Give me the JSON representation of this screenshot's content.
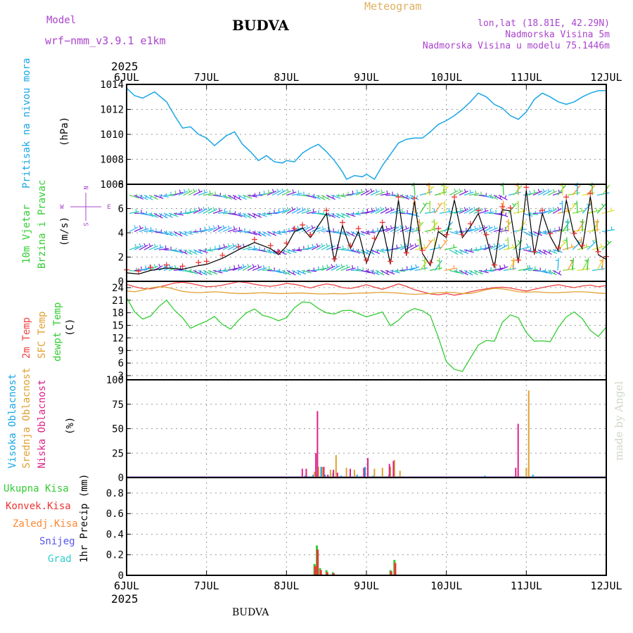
{
  "header": {
    "model_label": "Model",
    "model_name": "wrf−nmm_v3.9.1 e1km",
    "station": "BUDVA",
    "product": "Meteogram",
    "coords": "lon,lat (18.81E, 42.29N)",
    "elevation": "Nadmorska Visina 5m",
    "model_elevation": "Nadmorska Visina u modelu 75.1446m",
    "year_top": "2025",
    "year_bottom": "2025",
    "footer_station": "BUDVA",
    "watermark": "made by Angel"
  },
  "colors": {
    "pressure": "#1aa7e6",
    "temp2m": "#ee4444",
    "sfc_temp": "#e0a030",
    "dewpoint": "#33cc33",
    "wind_speed": "#000000",
    "gust_marker": "#ee3333",
    "high_cloud": "#1aa7e6",
    "mid_cloud": "#e0a030",
    "low_cloud": "#dd2288",
    "total_precip": "#33cc33",
    "convective_precip": "#ee3333",
    "freezing_precip": "#ff8833",
    "snow": "#5555ee",
    "hail": "#33cccc",
    "label_purple": "#aa44cc",
    "label_orange": "#e0b060"
  },
  "x_axis": {
    "ticks": [
      "6JUL",
      "7JUL",
      "8JUL",
      "9JUL",
      "10JUL",
      "11JUL",
      "12JUL"
    ],
    "start": 0,
    "end": 6
  },
  "panel_labels": {
    "pressure": {
      "name": "Pritisak na nivou mora",
      "unit": "(hPa)"
    },
    "wind": {
      "name1": "10m Vjetar",
      "name2": "Brzina i Pravac",
      "unit": "(m/s)",
      "compass_n": "N",
      "compass_w": "W",
      "compass_e": "E",
      "compass_s": "S"
    },
    "temp": {
      "name1": "2m Temp",
      "name2": "SFC Temp",
      "name3": "dewpt Temp",
      "unit": "(C)"
    },
    "cloud": {
      "name1": "Visoka Oblacnost",
      "name2": "Srednja Oblacnost",
      "name3": "Niska Oblacnost",
      "unit": "(%)"
    },
    "precip": {
      "legend": [
        "Ukupna Kisa",
        "Konvek.Kisa",
        "Zaledj.Kisa",
        "Snijeg",
        "Grad"
      ],
      "unit": "1hr Precip (mm)"
    }
  },
  "chart_data": [
    {
      "type": "line",
      "name": "pressure",
      "ylim": [
        1006,
        1014
      ],
      "yticks": [
        "1006",
        "1008",
        "1010",
        "1012",
        "1014"
      ],
      "x": [
        0,
        0.1,
        0.2,
        0.35,
        0.5,
        0.6,
        0.7,
        0.8,
        0.9,
        1.0,
        1.1,
        1.25,
        1.35,
        1.45,
        1.55,
        1.65,
        1.75,
        1.85,
        1.95,
        2.0,
        2.1,
        2.2,
        2.3,
        2.4,
        2.5,
        2.6,
        2.7,
        2.75,
        2.85,
        2.95,
        3.0,
        3.1,
        3.2,
        3.3,
        3.4,
        3.5,
        3.6,
        3.7,
        3.8,
        3.9,
        4.0,
        4.1,
        4.2,
        4.3,
        4.4,
        4.5,
        4.6,
        4.7,
        4.8,
        4.9,
        5.0,
        5.1,
        5.2,
        5.3,
        5.4,
        5.5,
        5.6,
        5.7,
        5.8,
        5.9,
        6.0
      ],
      "values": [
        1013.7,
        1013.1,
        1012.9,
        1013.4,
        1012.6,
        1011.5,
        1010.5,
        1010.6,
        1010.0,
        1009.7,
        1009.1,
        1009.9,
        1010.2,
        1009.2,
        1008.6,
        1007.9,
        1008.3,
        1007.8,
        1007.7,
        1007.9,
        1007.8,
        1008.5,
        1008.9,
        1009.2,
        1008.6,
        1007.9,
        1007.0,
        1006.4,
        1006.7,
        1006.6,
        1006.8,
        1006.4,
        1007.5,
        1008.4,
        1009.3,
        1009.6,
        1009.7,
        1009.7,
        1010.2,
        1010.8,
        1011.1,
        1011.5,
        1012.0,
        1012.6,
        1013.3,
        1013.0,
        1012.4,
        1012.1,
        1011.5,
        1011.2,
        1011.8,
        1012.8,
        1013.3,
        1013.0,
        1012.6,
        1012.4,
        1012.6,
        1013.0,
        1013.3,
        1013.5,
        1013.5
      ]
    },
    {
      "type": "line",
      "name": "wind_speed",
      "ylim": [
        0,
        8
      ],
      "yticks": [
        "0",
        "2",
        "4",
        "6",
        "8"
      ],
      "x": [
        0,
        0.15,
        0.3,
        0.5,
        0.7,
        0.9,
        1.0,
        1.2,
        1.4,
        1.6,
        1.8,
        1.9,
        2.0,
        2.1,
        2.2,
        2.3,
        2.5,
        2.6,
        2.7,
        2.8,
        2.9,
        3.0,
        3.1,
        3.2,
        3.3,
        3.4,
        3.5,
        3.6,
        3.7,
        3.8,
        3.9,
        4.0,
        4.1,
        4.2,
        4.3,
        4.4,
        4.5,
        4.6,
        4.7,
        4.8,
        4.9,
        5.0,
        5.1,
        5.2,
        5.3,
        5.4,
        5.5,
        5.6,
        5.7,
        5.8,
        5.9,
        6.0
      ],
      "values": [
        0.7,
        0.6,
        0.9,
        1.1,
        1.0,
        1.3,
        1.4,
        1.9,
        2.6,
        3.2,
        2.7,
        2.2,
        2.9,
        4.1,
        4.4,
        3.6,
        5.6,
        1.6,
        4.6,
        2.7,
        4.1,
        1.5,
        3.3,
        4.6,
        1.4,
        6.7,
        2.1,
        6.6,
        2.3,
        1.3,
        4.1,
        3.6,
        6.7,
        3.6,
        4.5,
        5.6,
        3.6,
        1.1,
        5.9,
        5.8,
        1.5,
        7.5,
        2.2,
        5.6,
        3.7,
        2.5,
        6.7,
        3.7,
        2.7,
        7.0,
        2.2,
        1.8
      ]
    },
    {
      "type": "line",
      "name": "temperature",
      "ylim": [
        2,
        25.5
      ],
      "yticks": [
        "3",
        "6",
        "9",
        "12",
        "15",
        "18",
        "21",
        "24"
      ],
      "x": [
        0,
        0.1,
        0.2,
        0.3,
        0.4,
        0.5,
        0.6,
        0.7,
        0.8,
        0.9,
        1.0,
        1.1,
        1.2,
        1.3,
        1.4,
        1.5,
        1.6,
        1.7,
        1.8,
        1.9,
        2.0,
        2.1,
        2.2,
        2.3,
        2.4,
        2.5,
        2.6,
        2.7,
        2.8,
        2.9,
        3.0,
        3.1,
        3.2,
        3.3,
        3.4,
        3.5,
        3.6,
        3.7,
        3.8,
        3.9,
        4.0,
        4.1,
        4.2,
        4.3,
        4.4,
        4.5,
        4.6,
        4.7,
        4.8,
        4.9,
        5.0,
        5.1,
        5.2,
        5.3,
        5.4,
        5.5,
        5.6,
        5.7,
        5.8,
        5.9,
        6.0
      ],
      "series": [
        {
          "name": "2m Temp",
          "values": [
            24.8,
            24.2,
            23.8,
            23.7,
            24.1,
            24.6,
            25.1,
            25.3,
            25.0,
            24.6,
            24.2,
            24.3,
            24.6,
            25.0,
            25.4,
            25.2,
            24.8,
            24.5,
            24.3,
            24.6,
            25.0,
            24.8,
            24.4,
            23.9,
            24.5,
            24.9,
            24.6,
            24.0,
            23.8,
            24.2,
            24.7,
            24.1,
            23.6,
            24.2,
            24.9,
            24.3,
            23.5,
            23.0,
            22.5,
            22.3,
            22.6,
            22.2,
            22.5,
            23.0,
            23.4,
            23.7,
            24.0,
            24.1,
            23.9,
            23.5,
            23.2,
            23.6,
            24.0,
            24.4,
            24.7,
            24.3,
            24.0,
            24.4,
            24.6,
            24.2,
            24.5
          ]
        },
        {
          "name": "SFC Temp",
          "values": [
            23.2,
            23.0,
            23.4,
            23.9,
            24.2,
            24.1,
            23.6,
            23.1,
            22.9,
            22.8,
            22.9,
            23.0,
            22.9,
            22.7,
            22.6,
            22.6,
            22.7,
            22.8,
            22.7,
            22.6,
            22.6,
            22.7,
            22.7,
            22.6,
            22.5,
            22.5,
            22.6,
            22.5,
            22.6,
            22.7,
            22.7,
            22.8,
            22.9,
            22.8,
            22.7,
            22.5,
            22.4,
            22.5,
            22.6,
            22.8,
            22.9,
            22.8,
            22.6,
            22.6,
            23.0,
            23.5,
            23.8,
            23.7,
            23.4,
            23.0,
            22.9,
            23.0,
            22.9,
            22.8,
            22.8,
            22.9,
            23.0,
            23.0,
            22.9,
            22.7,
            22.6
          ]
        },
        {
          "name": "dewpt Temp",
          "values": [
            21.6,
            18.2,
            16.5,
            17.2,
            19.4,
            21.0,
            18.6,
            16.8,
            14.3,
            15.2,
            16.0,
            17.1,
            15.2,
            14.1,
            16.2,
            18.0,
            18.9,
            17.4,
            16.9,
            16.1,
            16.8,
            19.2,
            20.6,
            20.4,
            19.0,
            18.0,
            17.7,
            18.5,
            18.6,
            17.8,
            17.0,
            17.6,
            18.2,
            14.9,
            16.2,
            18.1,
            19.0,
            18.5,
            17.3,
            12.1,
            6.3,
            4.5,
            4.0,
            7.2,
            10.3,
            11.4,
            11.2,
            15.7,
            17.5,
            16.8,
            13.3,
            11.2,
            11.3,
            11.1,
            14.5,
            17.0,
            18.2,
            16.6,
            13.8,
            12.3,
            14.6
          ]
        }
      ]
    },
    {
      "type": "bar",
      "name": "cloud_cover",
      "ylim": [
        0,
        100
      ],
      "yticks": [
        "0",
        "25",
        "50",
        "75",
        "100"
      ],
      "series": [
        {
          "name": "Visoka Oblacnost",
          "x": [
            2.2,
            2.25,
            2.3,
            2.35,
            2.4,
            2.45,
            2.5,
            2.55,
            2.6,
            2.7,
            2.8,
            2.9,
            3.0,
            3.1,
            3.2,
            3.3,
            3.4,
            4.5,
            5.0,
            5.05,
            5.1,
            5.6
          ],
          "values": [
            1,
            2,
            1,
            3,
            2,
            11,
            3,
            1,
            5,
            2,
            1,
            3,
            11,
            2,
            1,
            3,
            1,
            2,
            1,
            2,
            3,
            1
          ]
        },
        {
          "name": "Srednja Oblacnost",
          "x": [
            2.35,
            2.4,
            2.45,
            2.55,
            2.62,
            2.75,
            2.85,
            3.1,
            3.2,
            3.3,
            3.35,
            3.42,
            3.5,
            5.0,
            5.03
          ],
          "values": [
            6,
            11,
            11,
            8,
            23,
            10,
            8,
            9,
            10,
            11,
            18,
            7,
            1,
            10,
            89
          ]
        },
        {
          "name": "Niska Oblacnost",
          "x": [
            2.18,
            2.23,
            2.35,
            2.37,
            2.45,
            2.5,
            2.57,
            2.62,
            2.78,
            2.95,
            3.0,
            3.27,
            3.32,
            4.85,
            4.88
          ],
          "values": [
            9,
            9,
            25,
            68,
            11,
            3,
            8,
            5,
            9,
            10,
            20,
            14,
            17,
            10,
            55
          ]
        }
      ]
    },
    {
      "type": "bar",
      "name": "precipitation",
      "ylim": [
        0,
        0.95
      ],
      "yticks": [
        "0",
        "0.2",
        "0.4",
        "0.6",
        "0.8"
      ],
      "series": [
        {
          "name": "Ukupna Kisa",
          "x": [
            2.35,
            2.38,
            2.42,
            2.5,
            2.58,
            3.3,
            3.35
          ],
          "values": [
            0.11,
            0.29,
            0.07,
            0.05,
            0.03,
            0.05,
            0.15
          ]
        },
        {
          "name": "Konvek.Kisa",
          "x": [
            2.36,
            2.39,
            2.43,
            2.51,
            2.59,
            3.31,
            3.36
          ],
          "values": [
            0.09,
            0.25,
            0.05,
            0.03,
            0.02,
            0.04,
            0.12
          ]
        }
      ]
    }
  ]
}
